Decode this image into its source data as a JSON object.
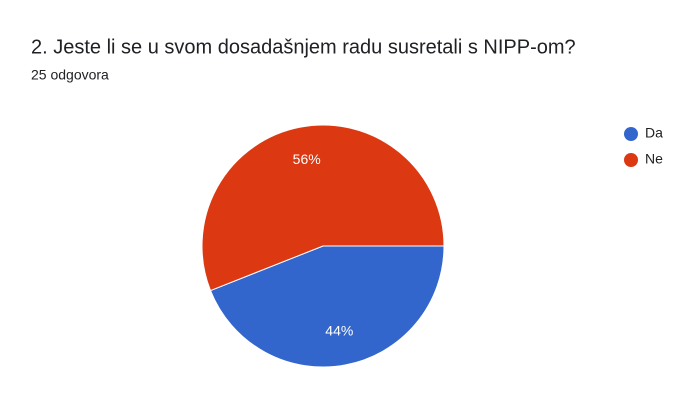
{
  "chart_data": {
    "type": "pie",
    "title": "2. Jeste li se u svom dosadašnjem radu susretali s NIPP-om?",
    "subtitle": "25 odgovora",
    "categories": [
      "Da",
      "Ne"
    ],
    "values": [
      44,
      56
    ],
    "value_labels": [
      "44%",
      "56%"
    ],
    "colors": [
      "#3366cc",
      "#dc3912"
    ],
    "legend": "right"
  }
}
